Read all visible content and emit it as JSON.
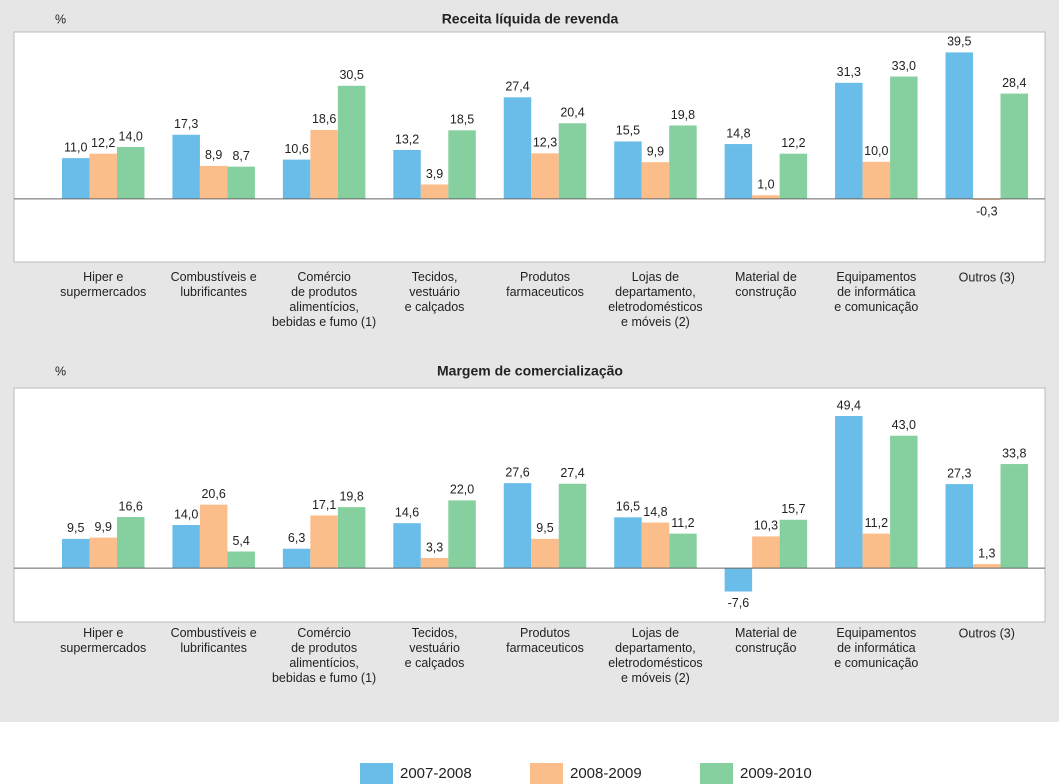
{
  "chart_data": [
    {
      "type": "bar",
      "title": "Receita líquida de revenda",
      "y_label": "%",
      "categories": [
        "Hiper e\nsupermercados",
        "Combustíveis e\nlubrificantes",
        "Comércio\nde produtos\nalimentícios,\nbebidas e fumo (1)",
        "Tecidos,\nvestuário\ne calçados",
        "Produtos\nfarmaceuticos",
        "Lojas de\ndepartamento,\neletrodomésticos\ne móveis (2)",
        "Material de\nconstrução",
        "Equipamentos\nde informática\ne comunicação",
        "Outros (3)"
      ],
      "ylim": [
        -17,
        45
      ],
      "series": [
        {
          "name": "2007-2008",
          "color": "#6bbde9",
          "values": [
            11.0,
            17.3,
            10.6,
            13.2,
            27.4,
            15.5,
            14.8,
            31.3,
            39.5
          ],
          "value_labels": [
            "11,0",
            "17,3",
            "10,6",
            "13,2",
            "27,4",
            "15,5",
            "14,8",
            "31,3",
            "39,5"
          ]
        },
        {
          "name": "2008-2009",
          "color": "#fbbd8a",
          "values": [
            12.2,
            8.9,
            18.6,
            3.9,
            12.3,
            9.9,
            1.0,
            10.0,
            -0.3
          ],
          "value_labels": [
            "12,2",
            "8,9",
            "18,6",
            "3,9",
            "12,3",
            "9,9",
            "1,0",
            "10,0",
            "-0,3"
          ]
        },
        {
          "name": "2009-2010",
          "color": "#86cf9f",
          "values": [
            14.0,
            8.7,
            30.5,
            18.5,
            20.4,
            19.8,
            12.2,
            33.0,
            28.4
          ],
          "value_labels": [
            "14,0",
            "8,7",
            "30,5",
            "18,5",
            "20,4",
            "19,8",
            "12,2",
            "33,0",
            "28,4"
          ]
        }
      ]
    },
    {
      "type": "bar",
      "title": "Margem de comercialização",
      "y_label": "%",
      "categories": [
        "Hiper e\nsupermercados",
        "Combustíveis e\nlubrificantes",
        "Comércio\nde produtos\nalimentícios,\nbebidas e fumo (1)",
        "Tecidos,\nvestuário\ne calçados",
        "Produtos\nfarmaceuticos",
        "Lojas de\ndepartamento,\neletrodomésticos\ne móveis (2)",
        "Material de\nconstrução",
        "Equipamentos\nde informática\ne comunicação",
        "Outros (3)"
      ],
      "ylim": [
        -17.5,
        58.5
      ],
      "series": [
        {
          "values": [
            9.5,
            14.0,
            6.3,
            14.6,
            27.6,
            16.5,
            -7.6,
            49.4,
            27.3
          ],
          "value_labels": [
            "9,5",
            "14,0",
            "6,3",
            "14,6",
            "27,6",
            "16,5",
            "-7,6",
            "49,4",
            "27,3"
          ]
        },
        {
          "values": [
            9.9,
            20.6,
            17.1,
            3.3,
            9.5,
            14.8,
            10.3,
            11.2,
            1.3
          ],
          "value_labels": [
            "9,9",
            "20,6",
            "17,1",
            "3,3",
            "9,5",
            "14,8",
            "10,3",
            "11,2",
            "1,3"
          ]
        },
        {
          "values": [
            16.6,
            5.4,
            19.8,
            22.0,
            27.4,
            11.2,
            15.7,
            43.0,
            33.8
          ],
          "value_labels": [
            "16,6",
            "5,4",
            "19,8",
            "22,0",
            "27,4",
            "11,2",
            "15,7",
            "43,0",
            "33,8"
          ]
        }
      ]
    }
  ]
}
